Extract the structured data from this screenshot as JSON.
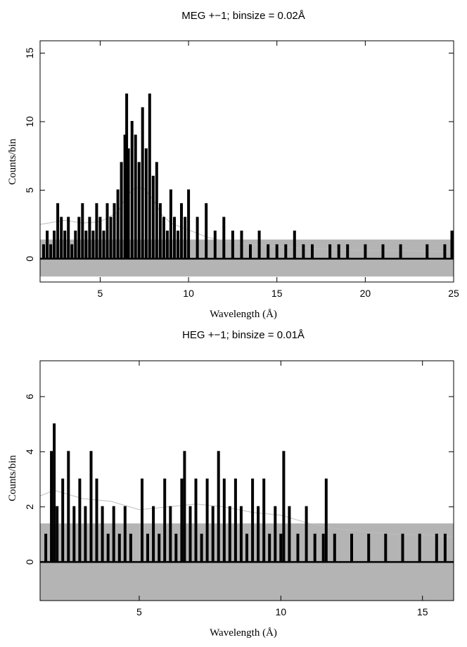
{
  "chart_data": [
    {
      "type": "line",
      "title": "MEG +−1; binsize = 0.02Å",
      "xlabel": "Wavelength (Å)",
      "ylabel": "Counts/bin",
      "xlim": [
        1.6,
        25.0
      ],
      "ylim": [
        -1.7,
        15.9
      ],
      "x_ticks": [
        5,
        10,
        15,
        20,
        25
      ],
      "x_tick_labels": [
        "5",
        "10",
        "15",
        "20",
        "25"
      ],
      "y_ticks": [
        0,
        5,
        10,
        15
      ],
      "y_tick_labels": [
        "0",
        "5",
        "10",
        "15"
      ],
      "binsize": 0.02,
      "grid": false,
      "colors": {
        "counts": "#000000",
        "model": "#bdbdbd",
        "error_band": "#b4b4b4"
      },
      "series": [
        {
          "role": "counts",
          "style": "histogram-step",
          "x": [
            1.8,
            2.0,
            2.2,
            2.4,
            2.6,
            2.8,
            3.0,
            3.2,
            3.4,
            3.6,
            3.8,
            4.0,
            4.2,
            4.4,
            4.6,
            4.8,
            5.0,
            5.2,
            5.4,
            5.6,
            5.8,
            6.0,
            6.2,
            6.4,
            6.5,
            6.6,
            6.8,
            7.0,
            7.2,
            7.4,
            7.6,
            7.8,
            8.0,
            8.2,
            8.4,
            8.6,
            8.8,
            9.0,
            9.2,
            9.4,
            9.6,
            9.8,
            10.0,
            10.5,
            11.0,
            11.5,
            12.0,
            12.5,
            13.0,
            13.5,
            14.0,
            14.5,
            15.0,
            15.5,
            16.0,
            16.5,
            17.0,
            17.5,
            18.0,
            18.5,
            19.0,
            19.5,
            20.0,
            20.5,
            21.0,
            21.5,
            22.0,
            22.5,
            23.0,
            23.5,
            24.0,
            24.5,
            24.9
          ],
          "y": [
            1,
            2,
            1,
            2,
            4,
            3,
            2,
            3,
            1,
            2,
            3,
            4,
            2,
            3,
            2,
            4,
            3,
            2,
            4,
            3,
            4,
            5,
            7,
            9,
            12,
            8,
            10,
            9,
            7,
            11,
            8,
            12,
            6,
            7,
            4,
            3,
            2,
            5,
            3,
            2,
            4,
            3,
            5,
            3,
            4,
            2,
            3,
            2,
            2,
            1,
            2,
            1,
            1,
            1,
            2,
            1,
            1,
            0,
            1,
            1,
            1,
            0,
            1,
            0,
            1,
            0,
            1,
            0,
            0,
            1,
            0,
            1,
            2
          ]
        },
        {
          "role": "model",
          "style": "thin-line",
          "x": [
            1.6,
            3,
            4,
            5,
            6,
            6.5,
            7,
            7.5,
            8,
            8.5,
            9,
            10,
            11,
            12,
            13,
            14,
            16,
            18,
            20,
            22,
            25
          ],
          "y": [
            2.5,
            2.8,
            2.6,
            2.7,
            3.4,
            4.6,
            5.2,
            5.1,
            4.3,
            3.2,
            2.6,
            2.1,
            1.6,
            1.3,
            1.1,
            1.0,
            0.8,
            0.7,
            0.6,
            0.6,
            0.5
          ]
        }
      ],
      "error_band": [
        -1.3,
        1.4
      ]
    },
    {
      "type": "line",
      "title": "HEG +−1; binsize = 0.01Å",
      "xlabel": "Wavelength (Å)",
      "ylabel": "Counts/bin",
      "xlim": [
        1.5,
        16.1
      ],
      "ylim": [
        -1.4,
        7.3
      ],
      "x_ticks": [
        5,
        10,
        15
      ],
      "x_tick_labels": [
        "5",
        "10",
        "15"
      ],
      "y_ticks": [
        0,
        2,
        4,
        6
      ],
      "y_tick_labels": [
        "0",
        "2",
        "4",
        "6"
      ],
      "binsize": 0.01,
      "grid": false,
      "colors": {
        "counts": "#000000",
        "model": "#bdbdbd",
        "error_band": "#b4b4b4"
      },
      "series": [
        {
          "role": "counts",
          "style": "histogram-step",
          "x": [
            1.7,
            1.9,
            2.0,
            2.1,
            2.3,
            2.5,
            2.7,
            2.9,
            3.1,
            3.3,
            3.5,
            3.7,
            3.9,
            4.1,
            4.3,
            4.5,
            4.7,
            4.9,
            5.1,
            5.3,
            5.5,
            5.7,
            5.9,
            6.1,
            6.3,
            6.5,
            6.6,
            6.8,
            7.0,
            7.2,
            7.4,
            7.6,
            7.8,
            8.0,
            8.2,
            8.4,
            8.6,
            8.8,
            9.0,
            9.2,
            9.4,
            9.6,
            9.8,
            10.0,
            10.1,
            10.3,
            10.6,
            10.9,
            11.2,
            11.5,
            11.6,
            11.9,
            12.2,
            12.5,
            12.8,
            13.1,
            13.4,
            13.7,
            14.0,
            14.3,
            14.6,
            14.9,
            15.2,
            15.5,
            15.8
          ],
          "y": [
            1,
            4,
            5,
            2,
            3,
            4,
            2,
            3,
            2,
            4,
            3,
            2,
            1,
            2,
            1,
            2,
            1,
            0,
            3,
            1,
            2,
            1,
            3,
            2,
            1,
            3,
            4,
            2,
            3,
            1,
            3,
            2,
            4,
            3,
            2,
            3,
            2,
            1,
            3,
            2,
            3,
            1,
            2,
            1,
            4,
            2,
            1,
            2,
            1,
            1,
            3,
            1,
            0,
            1,
            0,
            1,
            0,
            1,
            0,
            1,
            0,
            1,
            0,
            1,
            1
          ]
        },
        {
          "role": "model",
          "style": "thin-line",
          "x": [
            1.5,
            2,
            3,
            4,
            5,
            6,
            7,
            8,
            9,
            10,
            11,
            12,
            13,
            14,
            15,
            16.1
          ],
          "y": [
            2.4,
            2.6,
            2.3,
            2.2,
            1.9,
            2.0,
            2.1,
            2.0,
            1.8,
            1.7,
            1.4,
            1.2,
            1.1,
            1.0,
            1.0,
            0.9
          ]
        }
      ],
      "error_band": [
        -1.4,
        1.4
      ]
    }
  ]
}
